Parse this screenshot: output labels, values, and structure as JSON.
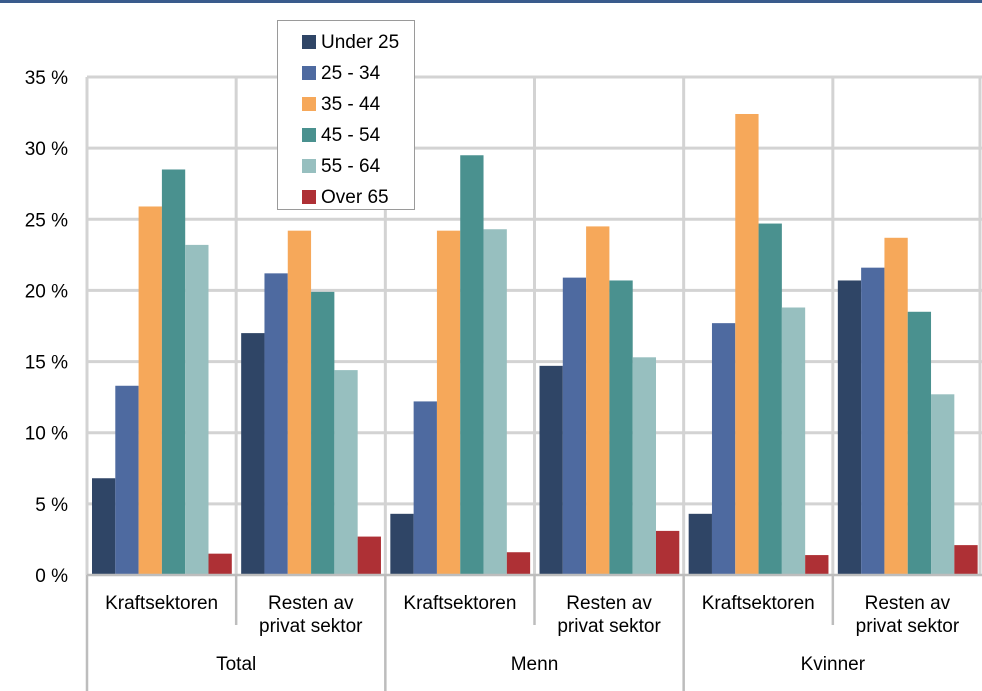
{
  "chart_data": {
    "type": "bar",
    "groups": [
      {
        "label": "Total",
        "categories": [
          "Kraftsektoren",
          "Resten av privat sektor"
        ]
      },
      {
        "label": "Menn",
        "categories": [
          "Kraftsektoren",
          "Resten av privat sektor"
        ]
      },
      {
        "label": "Kvinner",
        "categories": [
          "Kraftsektoren",
          "Resten av privat sektor"
        ]
      }
    ],
    "category_labels": [
      [
        "Kraftsektoren"
      ],
      [
        "Resten av",
        "privat sektor"
      ],
      [
        "Kraftsektoren"
      ],
      [
        "Resten av",
        "privat sektor"
      ],
      [
        "Kraftsektoren"
      ],
      [
        "Resten av",
        "privat sektor"
      ]
    ],
    "series": [
      {
        "name": "Under 25",
        "color": "#2f4566",
        "values": [
          6.8,
          17.0,
          4.3,
          14.7,
          4.3,
          20.7
        ]
      },
      {
        "name": "25 - 34",
        "color": "#4e6aa0",
        "values": [
          13.3,
          21.2,
          12.2,
          20.9,
          17.7,
          21.6
        ]
      },
      {
        "name": "35 - 44",
        "color": "#f6a85a",
        "values": [
          25.9,
          24.2,
          24.2,
          24.5,
          32.4,
          23.7
        ]
      },
      {
        "name": "45 - 54",
        "color": "#4a918f",
        "values": [
          28.5,
          19.9,
          29.5,
          20.7,
          24.7,
          18.5
        ]
      },
      {
        "name": "55 - 64",
        "color": "#97bfbf",
        "values": [
          23.2,
          14.4,
          24.3,
          15.3,
          18.8,
          12.7
        ]
      },
      {
        "name": "Over 65",
        "color": "#ae3035",
        "values": [
          1.5,
          2.7,
          1.6,
          3.1,
          1.4,
          2.1
        ]
      }
    ],
    "ylim": [
      0,
      35
    ],
    "yticks": [
      0,
      5,
      10,
      15,
      20,
      25,
      30,
      35
    ],
    "ytick_labels": [
      "0 %",
      "5 %",
      "10 %",
      "15 %",
      "20 %",
      "25 %",
      "30 %",
      "35 %"
    ],
    "grid": true,
    "legend_position": "top-left"
  }
}
